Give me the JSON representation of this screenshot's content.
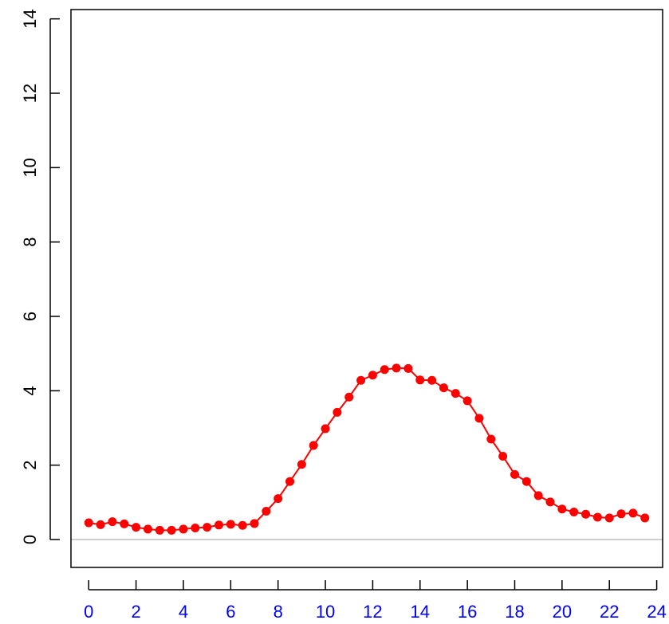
{
  "chart_data": {
    "type": "line",
    "title": "",
    "xlabel": "",
    "ylabel": "",
    "xlim": [
      -0.75,
      24.25
    ],
    "ylim": [
      -0.75,
      14.25
    ],
    "x_ticks": [
      0,
      2,
      4,
      6,
      8,
      10,
      12,
      14,
      16,
      18,
      20,
      22,
      24
    ],
    "x_tick_labels": [
      "0",
      "2",
      "4",
      "6",
      "8",
      "10",
      "12",
      "14",
      "16",
      "18",
      "20",
      "22",
      "24"
    ],
    "y_ticks": [
      0,
      2,
      4,
      6,
      8,
      10,
      12,
      14
    ],
    "y_tick_labels": [
      "0",
      "2",
      "4",
      "6",
      "8",
      "10",
      "12",
      "14"
    ],
    "grid": false,
    "reference_line": {
      "y": 0,
      "color": "#bebebe"
    },
    "series": [
      {
        "color": "#ff0000",
        "marker": "filled-circle",
        "x": [
          0,
          0.5,
          1,
          1.5,
          2,
          2.5,
          3,
          3.5,
          4,
          4.5,
          5,
          5.5,
          6,
          6.5,
          7,
          7.5,
          8,
          8.5,
          9,
          9.5,
          10,
          10.5,
          11,
          11.5,
          12,
          12.5,
          13,
          13.5,
          14,
          14.5,
          15,
          15.5,
          16,
          16.5,
          17,
          17.5,
          18,
          18.5,
          19,
          19.5,
          20,
          20.5,
          21,
          21.5,
          22,
          22.5,
          23,
          23.5
        ],
        "y": [
          0.45,
          0.4,
          0.48,
          0.42,
          0.33,
          0.28,
          0.25,
          0.25,
          0.28,
          0.31,
          0.33,
          0.39,
          0.41,
          0.38,
          0.43,
          0.76,
          1.1,
          1.56,
          2.02,
          2.53,
          2.98,
          3.42,
          3.83,
          4.28,
          4.42,
          4.57,
          4.61,
          4.6,
          4.29,
          4.28,
          4.08,
          3.93,
          3.73,
          3.26,
          2.7,
          2.24,
          1.75,
          1.56,
          1.18,
          1.01,
          0.82,
          0.74,
          0.68,
          0.6,
          0.58,
          0.69,
          0.71,
          0.58
        ]
      }
    ],
    "colors": {
      "axis": "#000000",
      "x_tick_label": "#0000ff",
      "y_tick_label": "#000000"
    }
  }
}
